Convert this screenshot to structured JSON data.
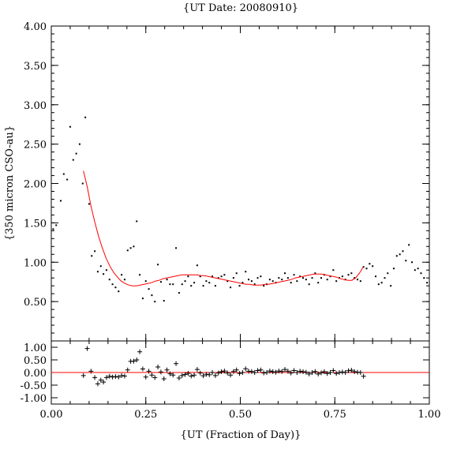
{
  "chart_data": [
    {
      "type": "scatter",
      "title": "{UT Date: 20080910}",
      "ylabel": "{350 micron CSO-au}",
      "xlim": [
        0.0,
        1.0
      ],
      "ylim": [
        0.0,
        4.0
      ],
      "yticks": [
        "4.00",
        "3.50",
        "3.00",
        "2.50",
        "2.00",
        "1.50",
        "1.00",
        "0.50"
      ],
      "yticks_values": [
        4.0,
        3.5,
        3.0,
        2.5,
        2.0,
        1.5,
        1.0,
        0.5
      ],
      "colors": {
        "points": "#000000",
        "fit": "#ff0000"
      },
      "series": [
        {
          "kind": "points",
          "x": [
            0.005,
            0.013,
            0.025,
            0.033,
            0.042,
            0.05,
            0.058,
            0.066,
            0.075,
            0.083,
            0.09,
            0.1,
            0.107,
            0.115,
            0.123,
            0.131,
            0.138,
            0.146,
            0.154,
            0.162,
            0.17,
            0.178,
            0.186,
            0.194,
            0.202,
            0.21,
            0.218,
            0.226,
            0.234,
            0.242,
            0.25,
            0.258,
            0.266,
            0.274,
            0.282,
            0.29,
            0.298,
            0.306,
            0.314,
            0.322,
            0.33,
            0.338,
            0.346,
            0.354,
            0.362,
            0.37,
            0.378,
            0.386,
            0.394,
            0.402,
            0.41,
            0.418,
            0.426,
            0.434,
            0.442,
            0.45,
            0.458,
            0.466,
            0.474,
            0.482,
            0.49,
            0.498,
            0.506,
            0.514,
            0.522,
            0.53,
            0.538,
            0.546,
            0.554,
            0.562,
            0.57,
            0.578,
            0.586,
            0.594,
            0.602,
            0.61,
            0.618,
            0.626,
            0.634,
            0.642,
            0.65,
            0.658,
            0.666,
            0.674,
            0.682,
            0.69,
            0.698,
            0.706,
            0.714,
            0.722,
            0.73,
            0.738,
            0.746,
            0.754,
            0.762,
            0.77,
            0.778,
            0.786,
            0.794,
            0.802,
            0.81,
            0.818,
            0.826,
            0.834,
            0.842,
            0.85,
            0.858,
            0.866,
            0.874,
            0.882,
            0.89,
            0.898,
            0.906,
            0.914,
            0.922,
            0.93,
            0.938,
            0.946,
            0.954,
            0.962,
            0.97,
            0.978,
            0.986,
            0.994
          ],
          "y": [
            1.42,
            1.47,
            1.78,
            2.12,
            2.05,
            2.72,
            2.3,
            2.38,
            2.5,
            2.0,
            2.84,
            1.74,
            1.08,
            1.14,
            0.88,
            0.95,
            0.85,
            0.9,
            0.78,
            0.72,
            0.68,
            0.63,
            0.84,
            0.78,
            1.15,
            1.18,
            1.2,
            1.52,
            0.84,
            0.54,
            0.76,
            0.66,
            0.58,
            0.5,
            0.97,
            0.75,
            0.51,
            0.78,
            0.72,
            0.72,
            1.18,
            0.61,
            0.72,
            0.76,
            0.82,
            0.7,
            0.74,
            0.96,
            0.82,
            0.7,
            0.76,
            0.74,
            0.82,
            0.7,
            0.8,
            0.82,
            0.84,
            0.76,
            0.68,
            0.8,
            0.86,
            0.7,
            0.74,
            0.88,
            0.78,
            0.76,
            0.72,
            0.8,
            0.82,
            0.7,
            0.72,
            0.78,
            0.76,
            0.74,
            0.8,
            0.78,
            0.86,
            0.8,
            0.74,
            0.84,
            0.76,
            0.82,
            0.8,
            0.78,
            0.72,
            0.8,
            0.86,
            0.74,
            0.8,
            0.84,
            0.78,
            0.82,
            0.9,
            0.76,
            0.8,
            0.82,
            0.78,
            0.84,
            0.86,
            0.8,
            0.78,
            0.76,
            0.94,
            0.92,
            0.98,
            0.95,
            0.82,
            0.72,
            0.74,
            0.8,
            0.86,
            0.7,
            0.92,
            1.08,
            1.1,
            1.14,
            1.02,
            1.22,
            1.0,
            0.9,
            0.92,
            0.86,
            0.8,
            0.74
          ]
        },
        {
          "kind": "fit",
          "x": [
            0.085,
            0.095,
            0.105,
            0.115,
            0.125,
            0.135,
            0.145,
            0.155,
            0.165,
            0.175,
            0.185,
            0.195,
            0.205,
            0.215,
            0.225,
            0.235,
            0.245,
            0.255,
            0.265,
            0.275,
            0.285,
            0.295,
            0.305,
            0.315,
            0.325,
            0.335,
            0.345,
            0.355,
            0.365,
            0.375,
            0.385,
            0.395,
            0.405,
            0.415,
            0.425,
            0.435,
            0.445,
            0.455,
            0.465,
            0.475,
            0.485,
            0.495,
            0.505,
            0.515,
            0.525,
            0.535,
            0.545,
            0.555,
            0.565,
            0.575,
            0.585,
            0.595,
            0.605,
            0.615,
            0.625,
            0.635,
            0.645,
            0.655,
            0.665,
            0.675,
            0.685,
            0.695,
            0.705,
            0.715,
            0.725,
            0.735,
            0.745,
            0.755,
            0.765,
            0.775,
            0.785,
            0.795,
            0.805,
            0.815,
            0.825
          ],
          "y": [
            2.16,
            1.96,
            1.71,
            1.51,
            1.33,
            1.18,
            1.05,
            0.95,
            0.87,
            0.81,
            0.76,
            0.73,
            0.71,
            0.7,
            0.7,
            0.71,
            0.72,
            0.73,
            0.74,
            0.76,
            0.77,
            0.79,
            0.8,
            0.81,
            0.82,
            0.83,
            0.84,
            0.84,
            0.84,
            0.84,
            0.84,
            0.83,
            0.83,
            0.82,
            0.81,
            0.8,
            0.79,
            0.78,
            0.77,
            0.76,
            0.75,
            0.74,
            0.73,
            0.72,
            0.72,
            0.71,
            0.71,
            0.71,
            0.72,
            0.72,
            0.73,
            0.74,
            0.75,
            0.76,
            0.77,
            0.78,
            0.8,
            0.81,
            0.82,
            0.83,
            0.84,
            0.85,
            0.85,
            0.85,
            0.84,
            0.83,
            0.82,
            0.81,
            0.79,
            0.78,
            0.77,
            0.77,
            0.8,
            0.86,
            0.94
          ]
        }
      ]
    },
    {
      "type": "scatter",
      "xlabel": "{UT (Fraction of Day)}",
      "xlim": [
        0.0,
        1.0
      ],
      "ylim": [
        -1.25,
        1.25
      ],
      "xticks": [
        "0.00",
        "0.25",
        "0.50",
        "0.75",
        "1.00"
      ],
      "xticks_values": [
        0.0,
        0.25,
        0.5,
        0.75,
        1.0
      ],
      "yticks": [
        "1.00",
        "0.50",
        "0.00",
        "-0.50",
        "-1.00"
      ],
      "yticks_values": [
        1.0,
        0.5,
        0.0,
        -0.5,
        -1.0
      ],
      "zero_line": 0.0,
      "series": [
        {
          "kind": "residuals",
          "x": [
            0.085,
            0.095,
            0.105,
            0.115,
            0.123,
            0.131,
            0.138,
            0.146,
            0.154,
            0.162,
            0.17,
            0.178,
            0.186,
            0.194,
            0.202,
            0.21,
            0.218,
            0.226,
            0.234,
            0.242,
            0.25,
            0.258,
            0.266,
            0.274,
            0.282,
            0.29,
            0.298,
            0.306,
            0.314,
            0.322,
            0.33,
            0.338,
            0.346,
            0.354,
            0.362,
            0.37,
            0.378,
            0.386,
            0.394,
            0.402,
            0.41,
            0.418,
            0.426,
            0.434,
            0.442,
            0.45,
            0.458,
            0.466,
            0.474,
            0.482,
            0.49,
            0.498,
            0.506,
            0.514,
            0.522,
            0.53,
            0.538,
            0.546,
            0.554,
            0.562,
            0.57,
            0.578,
            0.586,
            0.594,
            0.602,
            0.61,
            0.618,
            0.626,
            0.634,
            0.642,
            0.65,
            0.658,
            0.666,
            0.674,
            0.682,
            0.69,
            0.698,
            0.706,
            0.714,
            0.722,
            0.73,
            0.738,
            0.746,
            0.754,
            0.762,
            0.77,
            0.778,
            0.786,
            0.794,
            0.802,
            0.81,
            0.818,
            0.826
          ],
          "y": [
            -0.12,
            0.95,
            0.05,
            -0.2,
            -0.45,
            -0.3,
            -0.38,
            -0.2,
            -0.15,
            -0.18,
            -0.16,
            -0.18,
            -0.12,
            -0.14,
            0.1,
            0.44,
            0.45,
            0.5,
            0.82,
            0.14,
            -0.18,
            0.05,
            -0.1,
            -0.2,
            0.22,
            0.02,
            -0.25,
            0.1,
            -0.05,
            -0.1,
            0.35,
            -0.22,
            -0.12,
            -0.08,
            -0.03,
            -0.14,
            -0.1,
            0.12,
            -0.02,
            -0.13,
            -0.07,
            -0.09,
            0.0,
            -0.12,
            -0.02,
            0.03,
            0.06,
            -0.02,
            -0.1,
            0.04,
            0.1,
            -0.04,
            0.0,
            0.15,
            0.05,
            0.04,
            0.0,
            0.08,
            0.1,
            -0.02,
            0.0,
            0.06,
            0.03,
            0.01,
            0.06,
            0.04,
            0.12,
            0.05,
            -0.02,
            0.08,
            0.0,
            0.05,
            0.03,
            0.01,
            -0.06,
            0.0,
            0.04,
            -0.06,
            -0.01,
            0.03,
            -0.04,
            0.0,
            0.08,
            -0.04,
            0.0,
            0.02,
            0.0,
            0.07,
            0.09,
            0.03,
            0.01,
            0.0,
            -0.15
          ]
        }
      ]
    }
  ]
}
